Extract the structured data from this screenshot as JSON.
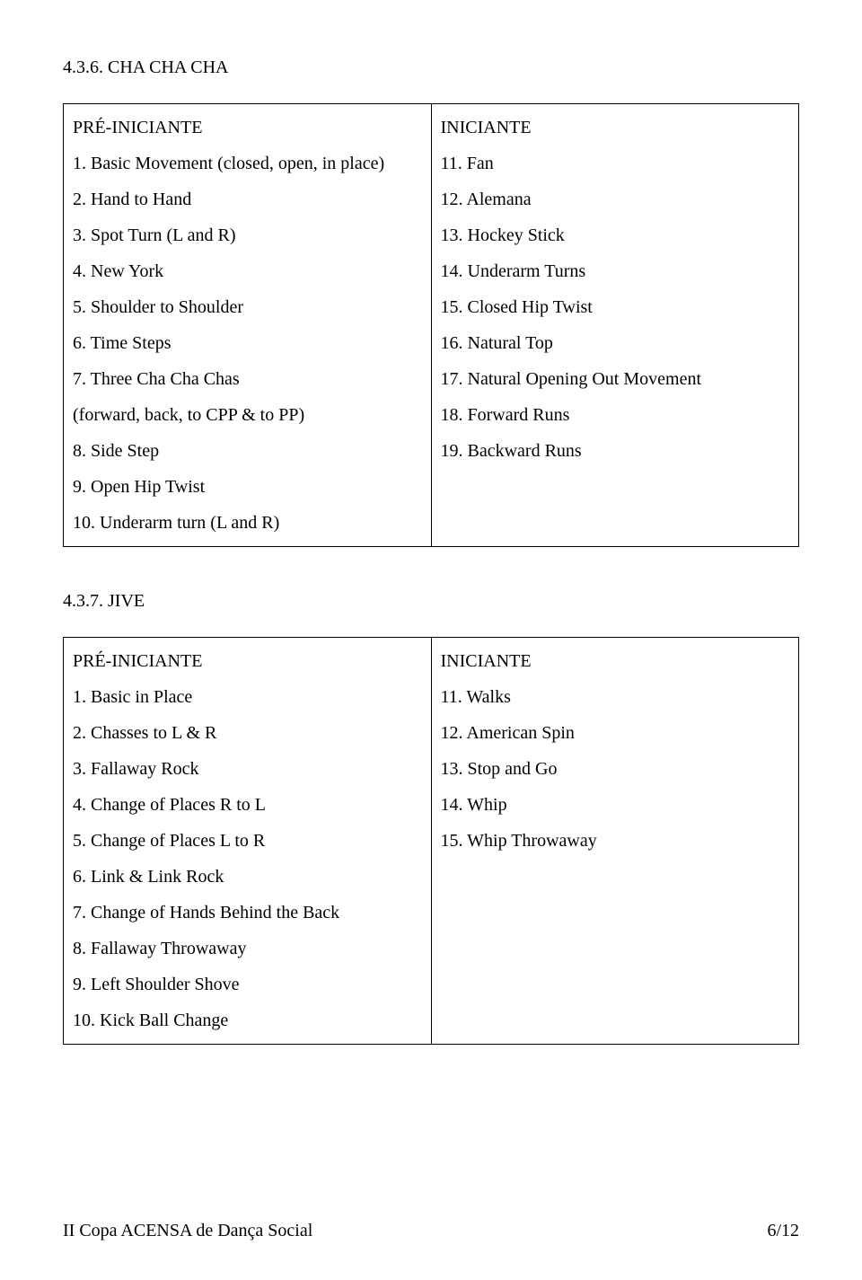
{
  "section1": {
    "heading": "4.3.6. CHA CHA CHA",
    "col1_header": "PRÉ-INICIANTE",
    "col2_header": "INICIANTE",
    "col1_items": [
      "1. Basic Movement (closed, open, in place)",
      "2. Hand to Hand",
      "3. Spot Turn (L and R)",
      "4. New York",
      "5. Shoulder to Shoulder",
      "6. Time Steps",
      "7. Three Cha Cha Chas\n(forward, back, to CPP & to PP)",
      "8. Side Step",
      "9. Open Hip Twist",
      "10. Underarm turn (L and R)"
    ],
    "col2_items": [
      "11. Fan",
      "12. Alemana",
      "13. Hockey Stick",
      "14. Underarm Turns",
      "15. Closed Hip Twist",
      "16. Natural Top",
      "17. Natural Opening Out Movement",
      "",
      "18. Forward Runs",
      "19. Backward Runs"
    ]
  },
  "section2": {
    "heading": "4.3.7. JIVE",
    "col1_header": "PRÉ-INICIANTE",
    "col2_header": "INICIANTE",
    "col1_items": [
      "1. Basic in Place",
      "2. Chasses to L & R",
      "3. Fallaway Rock",
      "4. Change of Places R to L",
      "5. Change of Places L to R",
      "6. Link & Link Rock",
      "7. Change of Hands Behind the Back",
      "8. Fallaway Throwaway",
      "9. Left Shoulder Shove",
      "10. Kick Ball Change"
    ],
    "col2_items": [
      "11. Walks",
      "12. American Spin",
      "13. Stop and Go",
      "14. Whip",
      "15. Whip Throwaway"
    ]
  },
  "footer": {
    "left": "II Copa ACENSA de Dança Social",
    "right": "6/12"
  }
}
